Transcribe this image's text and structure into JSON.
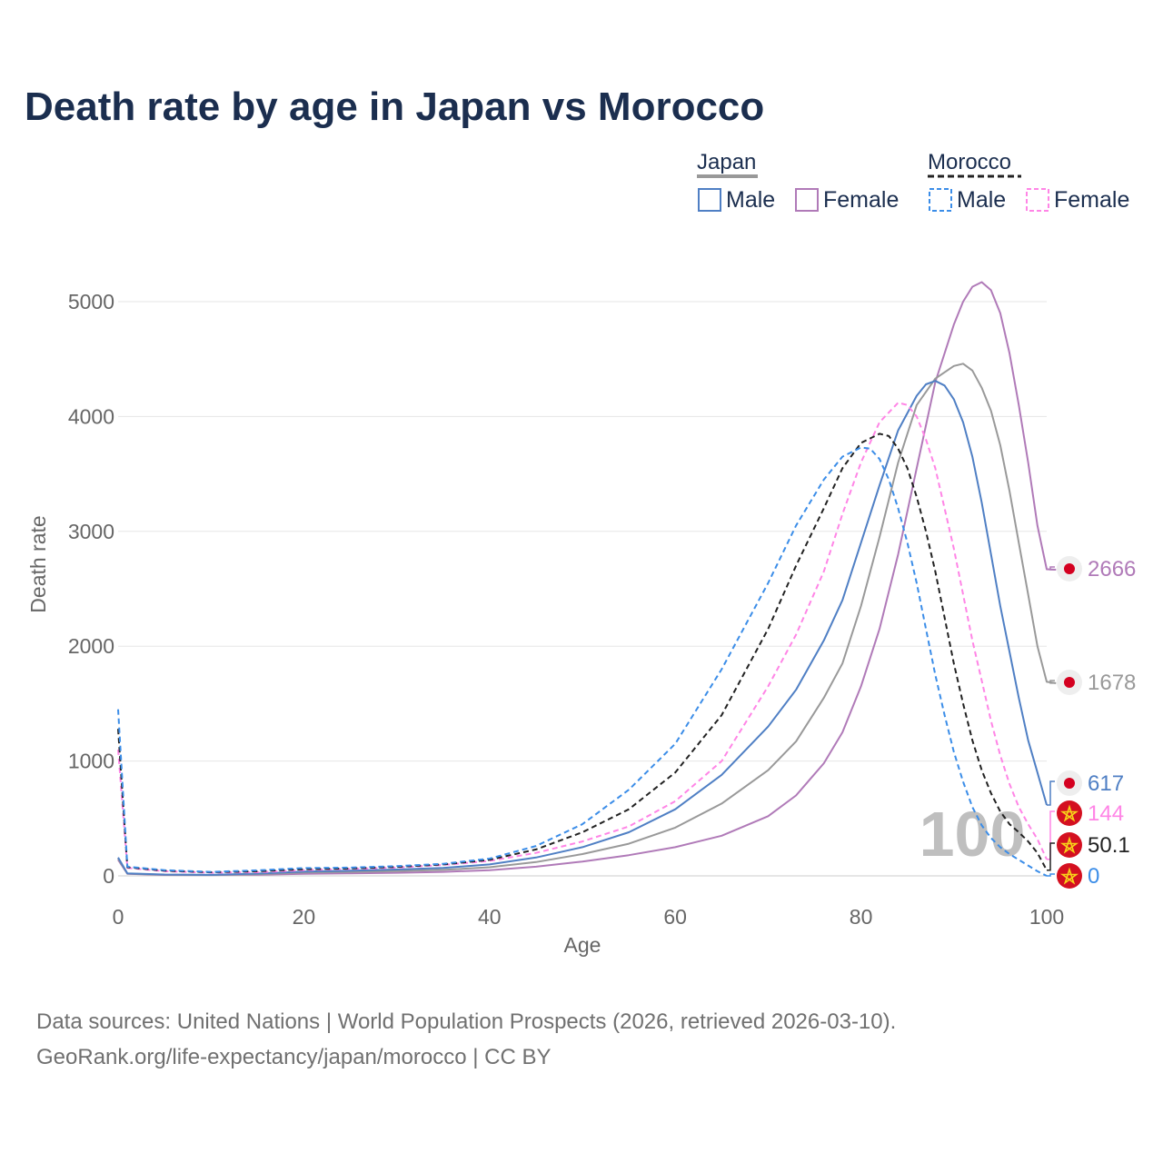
{
  "colors": {
    "japan_male": "#4f7fc4",
    "japan_female": "#b07ab8",
    "japan_total": "#999999",
    "morocco_male": "#3b8de8",
    "morocco_female": "#ff85e6",
    "morocco_total": "#222222",
    "title": "#1b2e4f",
    "axis_text": "#666666",
    "grid": "#e6e6e6",
    "japan_flag_red": "#d40020",
    "morocco_flag_red": "#d41020",
    "morocco_star": "#f7d21a"
  },
  "legend": {
    "japan": {
      "label": "Japan",
      "male": "Male",
      "female": "Female"
    },
    "morocco": {
      "label": "Morocco",
      "male": "Male",
      "female": "Female"
    }
  },
  "watermark": "100",
  "footer": {
    "line1": "Data sources: United Nations | World Population Prospects (2026, retrieved 2026-03-10).",
    "line2": "GeoRank.org/life-expectancy/japan/morocco | CC BY"
  },
  "chart_data": {
    "type": "line",
    "title": "Death rate by age in Japan vs Morocco",
    "xlabel": "Age",
    "ylabel": "Death rate",
    "xlim": [
      0,
      100
    ],
    "ylim": [
      0,
      5000
    ],
    "xticks": [
      0,
      20,
      40,
      60,
      80,
      100
    ],
    "yticks": [
      0,
      1000,
      2000,
      3000,
      4000,
      5000
    ],
    "grid": true,
    "legend_position": "top-right",
    "series": [
      {
        "key": "japan_female",
        "name": "Japan Female",
        "country": "Japan",
        "dash": "solid",
        "color_key": "japan_female",
        "end_label": "2666",
        "points": [
          [
            0,
            140
          ],
          [
            1,
            18
          ],
          [
            5,
            8
          ],
          [
            10,
            7
          ],
          [
            15,
            10
          ],
          [
            20,
            18
          ],
          [
            25,
            22
          ],
          [
            30,
            27
          ],
          [
            35,
            35
          ],
          [
            40,
            50
          ],
          [
            45,
            80
          ],
          [
            50,
            125
          ],
          [
            55,
            180
          ],
          [
            60,
            250
          ],
          [
            65,
            350
          ],
          [
            70,
            520
          ],
          [
            73,
            700
          ],
          [
            76,
            980
          ],
          [
            78,
            1250
          ],
          [
            80,
            1650
          ],
          [
            82,
            2150
          ],
          [
            84,
            2800
          ],
          [
            86,
            3550
          ],
          [
            88,
            4300
          ],
          [
            90,
            4800
          ],
          [
            91,
            5000
          ],
          [
            92,
            5130
          ],
          [
            93,
            5170
          ],
          [
            94,
            5100
          ],
          [
            95,
            4900
          ],
          [
            96,
            4550
          ],
          [
            97,
            4100
          ],
          [
            98,
            3600
          ],
          [
            99,
            3050
          ],
          [
            100,
            2670
          ],
          [
            101,
            2666
          ]
        ]
      },
      {
        "key": "japan_total",
        "name": "Japan Total",
        "country": "Japan",
        "dash": "solid",
        "color_key": "japan_total",
        "end_label": "1678",
        "points": [
          [
            0,
            150
          ],
          [
            1,
            20
          ],
          [
            5,
            10
          ],
          [
            10,
            8
          ],
          [
            15,
            15
          ],
          [
            20,
            30
          ],
          [
            25,
            35
          ],
          [
            30,
            42
          ],
          [
            35,
            52
          ],
          [
            40,
            75
          ],
          [
            45,
            120
          ],
          [
            50,
            190
          ],
          [
            55,
            280
          ],
          [
            60,
            420
          ],
          [
            65,
            630
          ],
          [
            70,
            920
          ],
          [
            73,
            1170
          ],
          [
            76,
            1550
          ],
          [
            78,
            1850
          ],
          [
            80,
            2350
          ],
          [
            82,
            2950
          ],
          [
            84,
            3600
          ],
          [
            86,
            4100
          ],
          [
            88,
            4330
          ],
          [
            90,
            4440
          ],
          [
            91,
            4460
          ],
          [
            92,
            4400
          ],
          [
            93,
            4250
          ],
          [
            94,
            4050
          ],
          [
            95,
            3750
          ],
          [
            96,
            3350
          ],
          [
            97,
            2900
          ],
          [
            98,
            2450
          ],
          [
            99,
            2000
          ],
          [
            100,
            1690
          ],
          [
            101,
            1678
          ]
        ]
      },
      {
        "key": "japan_male",
        "name": "Japan Male",
        "country": "Japan",
        "dash": "solid",
        "color_key": "japan_male",
        "end_label": "617",
        "points": [
          [
            0,
            160
          ],
          [
            1,
            22
          ],
          [
            5,
            12
          ],
          [
            10,
            9
          ],
          [
            15,
            20
          ],
          [
            20,
            38
          ],
          [
            25,
            45
          ],
          [
            30,
            55
          ],
          [
            35,
            70
          ],
          [
            40,
            100
          ],
          [
            45,
            160
          ],
          [
            50,
            250
          ],
          [
            55,
            380
          ],
          [
            60,
            580
          ],
          [
            65,
            880
          ],
          [
            70,
            1300
          ],
          [
            73,
            1620
          ],
          [
            76,
            2050
          ],
          [
            78,
            2400
          ],
          [
            80,
            2900
          ],
          [
            82,
            3400
          ],
          [
            84,
            3880
          ],
          [
            86,
            4180
          ],
          [
            87,
            4280
          ],
          [
            88,
            4310
          ],
          [
            89,
            4270
          ],
          [
            90,
            4150
          ],
          [
            91,
            3950
          ],
          [
            92,
            3650
          ],
          [
            93,
            3250
          ],
          [
            94,
            2800
          ],
          [
            95,
            2350
          ],
          [
            96,
            1950
          ],
          [
            97,
            1550
          ],
          [
            98,
            1180
          ],
          [
            99,
            900
          ],
          [
            100,
            617
          ]
        ]
      },
      {
        "key": "morocco_female",
        "name": "Morocco Female",
        "country": "Morocco",
        "dash": "dashed",
        "color_key": "morocco_female",
        "end_label": "144",
        "points": [
          [
            0,
            1100
          ],
          [
            1,
            70
          ],
          [
            5,
            40
          ],
          [
            10,
            28
          ],
          [
            15,
            32
          ],
          [
            20,
            50
          ],
          [
            25,
            60
          ],
          [
            30,
            72
          ],
          [
            35,
            95
          ],
          [
            40,
            130
          ],
          [
            45,
            200
          ],
          [
            50,
            300
          ],
          [
            55,
            430
          ],
          [
            60,
            650
          ],
          [
            65,
            1000
          ],
          [
            70,
            1650
          ],
          [
            73,
            2100
          ],
          [
            76,
            2650
          ],
          [
            78,
            3150
          ],
          [
            80,
            3600
          ],
          [
            82,
            3950
          ],
          [
            84,
            4120
          ],
          [
            85,
            4100
          ],
          [
            86,
            4000
          ],
          [
            87,
            3800
          ],
          [
            88,
            3550
          ],
          [
            89,
            3200
          ],
          [
            90,
            2850
          ],
          [
            91,
            2450
          ],
          [
            92,
            2050
          ],
          [
            93,
            1700
          ],
          [
            94,
            1350
          ],
          [
            95,
            1050
          ],
          [
            96,
            800
          ],
          [
            97,
            600
          ],
          [
            98,
            450
          ],
          [
            99,
            320
          ],
          [
            100,
            144
          ]
        ]
      },
      {
        "key": "morocco_total",
        "name": "Morocco Total",
        "country": "Morocco",
        "dash": "dashed",
        "color_key": "morocco_total",
        "end_label": "50.1",
        "points": [
          [
            0,
            1280
          ],
          [
            1,
            75
          ],
          [
            5,
            45
          ],
          [
            10,
            32
          ],
          [
            15,
            40
          ],
          [
            20,
            58
          ],
          [
            25,
            65
          ],
          [
            30,
            78
          ],
          [
            35,
            100
          ],
          [
            40,
            140
          ],
          [
            45,
            230
          ],
          [
            50,
            380
          ],
          [
            55,
            580
          ],
          [
            60,
            900
          ],
          [
            65,
            1400
          ],
          [
            70,
            2150
          ],
          [
            73,
            2700
          ],
          [
            76,
            3200
          ],
          [
            78,
            3550
          ],
          [
            80,
            3770
          ],
          [
            82,
            3850
          ],
          [
            83,
            3830
          ],
          [
            84,
            3720
          ],
          [
            85,
            3550
          ],
          [
            86,
            3300
          ],
          [
            87,
            3000
          ],
          [
            88,
            2650
          ],
          [
            89,
            2250
          ],
          [
            90,
            1850
          ],
          [
            91,
            1500
          ],
          [
            92,
            1180
          ],
          [
            93,
            920
          ],
          [
            94,
            720
          ],
          [
            95,
            560
          ],
          [
            96,
            450
          ],
          [
            97,
            380
          ],
          [
            98,
            300
          ],
          [
            99,
            200
          ],
          [
            100,
            50.1
          ]
        ]
      },
      {
        "key": "morocco_male",
        "name": "Morocco Male",
        "country": "Morocco",
        "dash": "dashed",
        "color_key": "morocco_male",
        "end_label": "0",
        "points": [
          [
            0,
            1450
          ],
          [
            1,
            80
          ],
          [
            5,
            50
          ],
          [
            10,
            35
          ],
          [
            15,
            48
          ],
          [
            20,
            68
          ],
          [
            25,
            72
          ],
          [
            30,
            85
          ],
          [
            35,
            105
          ],
          [
            40,
            150
          ],
          [
            45,
            260
          ],
          [
            50,
            450
          ],
          [
            55,
            750
          ],
          [
            60,
            1150
          ],
          [
            65,
            1800
          ],
          [
            70,
            2550
          ],
          [
            73,
            3050
          ],
          [
            76,
            3450
          ],
          [
            78,
            3650
          ],
          [
            80,
            3730
          ],
          [
            81,
            3720
          ],
          [
            82,
            3630
          ],
          [
            83,
            3450
          ],
          [
            84,
            3200
          ],
          [
            85,
            2900
          ],
          [
            86,
            2550
          ],
          [
            87,
            2150
          ],
          [
            88,
            1750
          ],
          [
            89,
            1400
          ],
          [
            90,
            1080
          ],
          [
            91,
            820
          ],
          [
            92,
            600
          ],
          [
            93,
            440
          ],
          [
            94,
            330
          ],
          [
            95,
            250
          ],
          [
            96,
            190
          ],
          [
            97,
            140
          ],
          [
            98,
            90
          ],
          [
            99,
            40
          ],
          [
            100,
            0
          ]
        ]
      }
    ]
  }
}
